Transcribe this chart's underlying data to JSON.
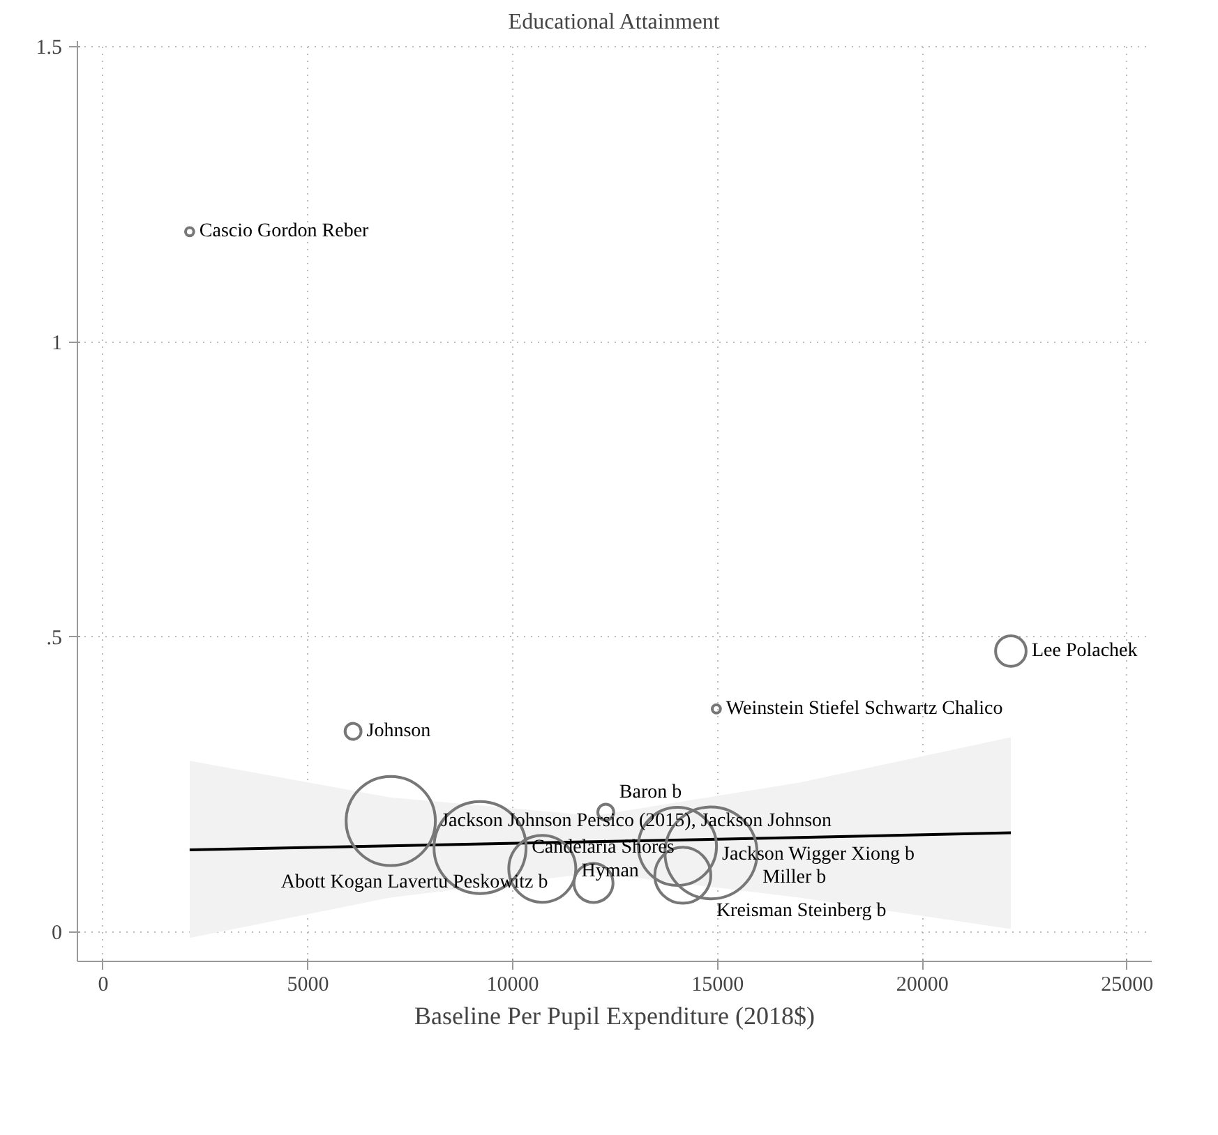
{
  "chart_data": {
    "type": "bubble",
    "title": "Educational Attainment",
    "xlabel": "Baseline Per Pupil Expenditure (2018$)",
    "xlim": [
      -630,
      25600
    ],
    "ylim": [
      -0.05,
      1.51
    ],
    "xticks": [
      0,
      5000,
      10000,
      15000,
      20000,
      25000
    ],
    "yticks": [
      0,
      {
        "value": 0.5,
        "label": ".5"
      },
      1,
      1.5
    ],
    "grid": true,
    "series": [
      {
        "type": "bubble",
        "marker": "circle",
        "color": "#777777",
        "x": [
          2110,
          6100,
          22160,
          14970,
          12270,
          7020,
          9200,
          10720,
          11970,
          14020,
          14840,
          14150
        ],
        "values": [
          1.187,
          0.34,
          0.476,
          0.378,
          0.203,
          0.188,
          0.143,
          0.107,
          0.083,
          0.145,
          0.134,
          0.096
        ],
        "sizes": [
          0.008,
          0.03,
          0.11,
          0.008,
          0.03,
          0.94,
          1,
          0.53,
          0.18,
          0.72,
          1,
          0.37
        ]
      },
      {
        "type": "line",
        "marker": "none",
        "color": "#000000",
        "x": [
          2110,
          7000,
          12000,
          17000,
          22160
        ],
        "values": [
          0.139,
          0.146,
          0.153,
          0.16,
          0.168
        ],
        "lower": [
          -0.01,
          0.058,
          0.1,
          0.058,
          0.005
        ],
        "upper": [
          0.29,
          0.228,
          0.197,
          0.253,
          0.33
        ]
      }
    ],
    "annotations": [
      {
        "text": "Cascio Gordon Reber",
        "x": 2110,
        "y": 1.187
      },
      {
        "text": "Johnson",
        "x": 6100,
        "y": 0.34
      },
      {
        "text": "Lee Polachek",
        "x": 22160,
        "y": 0.476
      },
      {
        "text": "Weinstein Stiefel Schwartz Chalico",
        "x": 14970,
        "y": 0.378
      },
      {
        "text": "Baron b",
        "x": 12270,
        "y": 0.203
      },
      {
        "text": "Jackson Johnson Persico (2015), Jackson Johnson",
        "x": 7020,
        "y": 0.188
      },
      {
        "text": "Candelaria Shores",
        "x": 9200,
        "y": 0.143
      },
      {
        "text": "Hyman",
        "x": 10720,
        "y": 0.107
      },
      {
        "text": "Abott Kogan Lavertu Peskowitz b",
        "x": 11970,
        "y": 0.083
      },
      {
        "text": "Jackson Wigger Xiong b",
        "x": 14020,
        "y": 0.145
      },
      {
        "text": "Miller b",
        "x": 14840,
        "y": 0.134
      },
      {
        "text": "Kreisman Steinberg b",
        "x": 14150,
        "y": 0.096
      }
    ]
  }
}
